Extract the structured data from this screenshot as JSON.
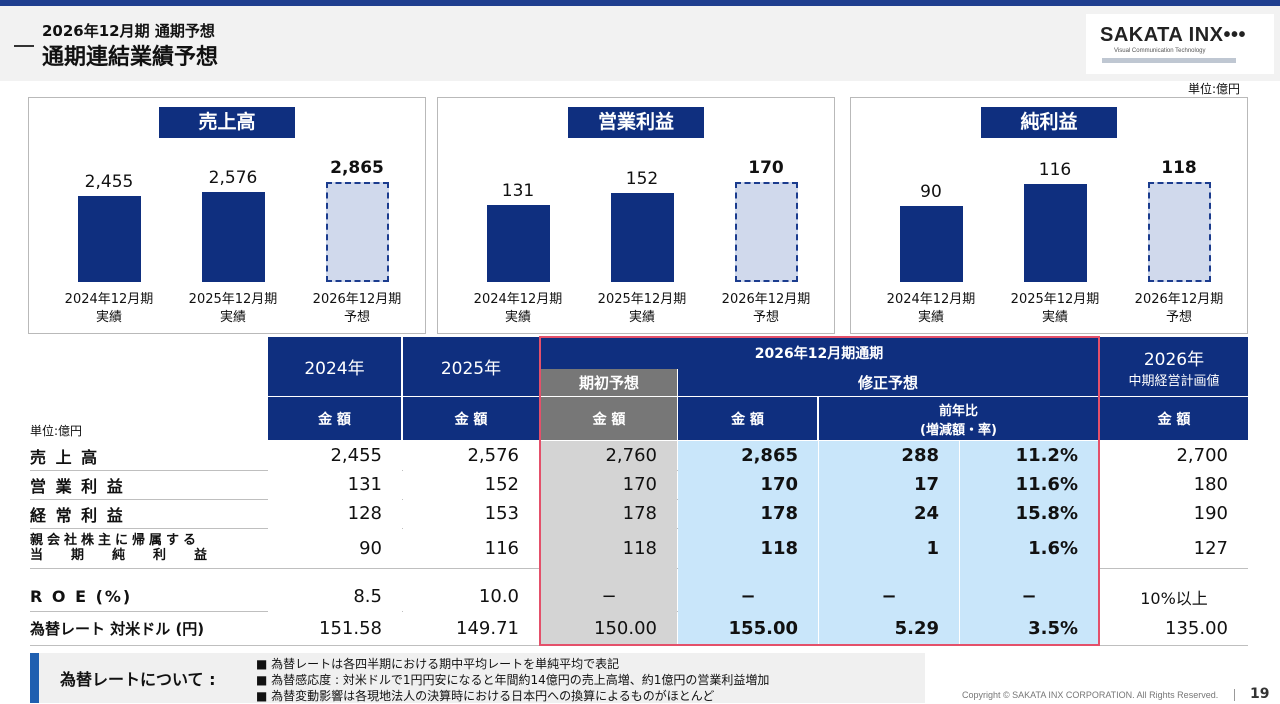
{
  "header": {
    "subtitle": "2026年12月期 通期予想",
    "title": "通期連結業績予想",
    "logo": "SAKATA INX•••",
    "logo_sub": "Visual Communication Technology",
    "unit": "単位:億円"
  },
  "chart_data": [
    {
      "type": "bar",
      "title": "売上高",
      "categories": [
        "2024年12月期 実績",
        "2025年12月期 実績",
        "2026年12月期 予想"
      ],
      "values": [
        2455,
        2576,
        2865
      ],
      "value_labels": [
        "2,455",
        "2,576",
        "2,865"
      ],
      "forecast_index": 2,
      "colors": {
        "actual": "#0f2f7f",
        "forecast": "#d0d9ec"
      }
    },
    {
      "type": "bar",
      "title": "営業利益",
      "categories": [
        "2024年12月期 実績",
        "2025年12月期 実績",
        "2026年12月期 予想"
      ],
      "values": [
        131,
        152,
        170
      ],
      "value_labels": [
        "131",
        "152",
        "170"
      ],
      "forecast_index": 2,
      "colors": {
        "actual": "#0f2f7f",
        "forecast": "#d0d9ec"
      }
    },
    {
      "type": "bar",
      "title": "純利益",
      "categories": [
        "2024年12月期 実績",
        "2025年12月期 実績",
        "2026年12月期 予想"
      ],
      "values": [
        90,
        116,
        118
      ],
      "value_labels": [
        "90",
        "116",
        "118"
      ],
      "forecast_index": 2,
      "colors": {
        "actual": "#0f2f7f",
        "forecast": "#d0d9ec"
      }
    }
  ],
  "charts_text": {
    "cats": [
      {
        "l1": "2024年12月期",
        "l2": "実績"
      },
      {
        "l1": "2025年12月期",
        "l2": "実績"
      },
      {
        "l1": "2026年12月期",
        "l2": "予想"
      }
    ]
  },
  "table": {
    "unit": "単位:億円",
    "col_2024": "2024年",
    "col_2025": "2025年",
    "period": "2026年12月期通期",
    "initial": "期初予想",
    "revised": "修正予想",
    "amount": "金 額",
    "yoy_l1": "前年比",
    "yoy_l2": "(増減額・率)",
    "plan_l1": "2026年",
    "plan_l2": "中期経営計画値",
    "rows": [
      {
        "label": "売 上 高",
        "v2024": "2,455",
        "v2025": "2,576",
        "initial": "2,760",
        "revised": "2,865",
        "diff": "288",
        "rate": "11.2%",
        "plan": "2,700"
      },
      {
        "label": "営 業 利 益",
        "v2024": "131",
        "v2025": "152",
        "initial": "170",
        "revised": "170",
        "diff": "17",
        "rate": "11.6%",
        "plan": "180"
      },
      {
        "label": "経 常 利 益",
        "v2024": "128",
        "v2025": "153",
        "initial": "178",
        "revised": "178",
        "diff": "24",
        "rate": "15.8%",
        "plan": "190"
      },
      {
        "label_l1": "親会社株主に帰属する",
        "label_l2": "当期純利益",
        "v2024": "90",
        "v2025": "116",
        "initial": "118",
        "revised": "118",
        "diff": "1",
        "rate": "1.6%",
        "plan": "127"
      },
      {
        "label": "R O E (%)",
        "v2024": "8.5",
        "v2025": "10.0",
        "initial": "−",
        "revised": "−",
        "diff": "−",
        "rate": "−",
        "plan": "10%以上"
      },
      {
        "label": "為替レート 対米ドル (円)",
        "v2024": "151.58",
        "v2025": "149.71",
        "initial": "150.00",
        "revised": "155.00",
        "diff": "5.29",
        "rate": "3.5%",
        "plan": "135.00"
      }
    ]
  },
  "note": {
    "title": "為替レートについて :",
    "lines": [
      "■ 為替レートは各四半期における期中平均レートを単純平均で表記",
      "■ 為替感応度 : 対米ドルで1円円安になると年間約14億円の売上高増、約1億円の営業利益増加",
      "■ 為替変動影響は各現地法人の決算時における日本円への換算によるものがほとんど"
    ]
  },
  "footer": {
    "copyright": "Copyright © SAKATA INX CORPORATION. All Rights Reserved.",
    "page": "19"
  }
}
